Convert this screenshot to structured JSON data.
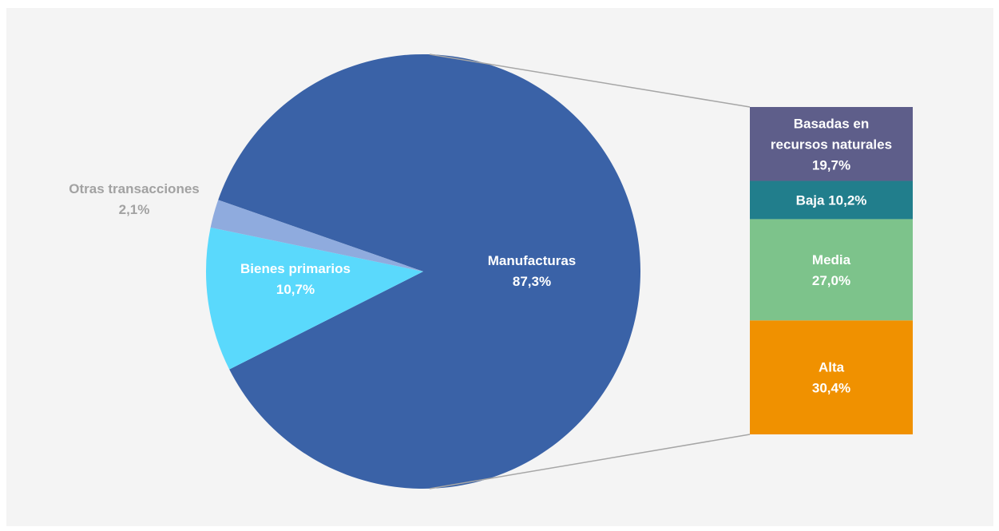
{
  "chart_data": {
    "type": "pie",
    "slices": [
      {
        "label": "Manufacturas",
        "value": 87.3,
        "value_label": "87,3%",
        "color": "#3a62a7",
        "label_color": "#ffffff"
      },
      {
        "label": "Bienes primarios",
        "value": 10.7,
        "value_label": "10,7%",
        "color": "#5ad9fc",
        "label_color": "#ffffff"
      },
      {
        "label": "Otras transacciones",
        "value": 2.1,
        "value_label": "2,1%",
        "color": "#8fabde",
        "label_color": "#a2a2a2"
      }
    ],
    "breakdown": {
      "parent": "Manufacturas",
      "type": "stacked-bar",
      "segments": [
        {
          "label": "Alta",
          "value": 30.4,
          "value_label": "30,4%",
          "color": "#f09100"
        },
        {
          "label": "Media",
          "value": 27.0,
          "value_label": "27,0%",
          "color": "#7dc38b"
        },
        {
          "label": "Baja",
          "value": 10.2,
          "value_label": "10,2%",
          "color": "#217e8c"
        },
        {
          "label": "Basadas en recursos naturales",
          "value": 19.7,
          "value_label": "19,7%",
          "color": "#5e5e8a"
        }
      ]
    },
    "connector_color": "#a6a6a6"
  }
}
